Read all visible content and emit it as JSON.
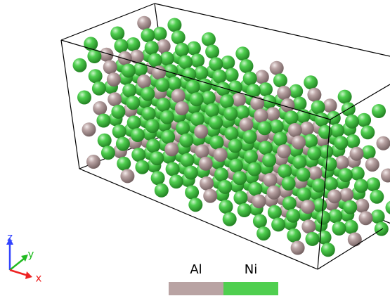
{
  "legend": [
    {
      "label": "Al",
      "color": "#b9a3a3"
    },
    {
      "label": "Ni",
      "color": "#4fcf4f"
    }
  ],
  "axes": {
    "z": "z",
    "y": "y",
    "x": "x"
  }
}
